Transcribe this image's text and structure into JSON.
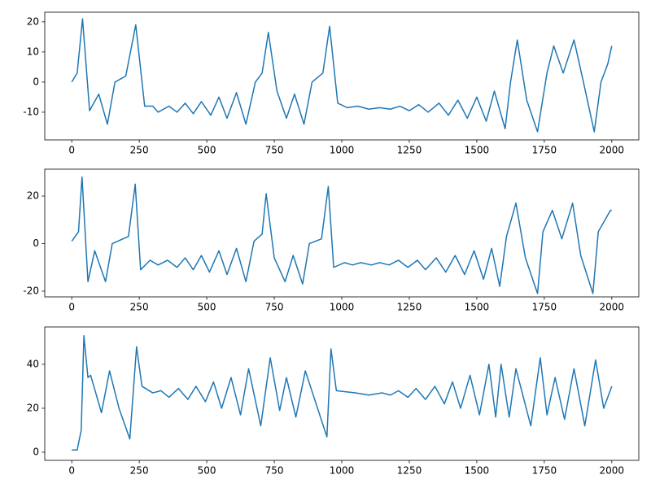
{
  "chart_data": [
    {
      "type": "line",
      "color": "#1f77b4",
      "xlim": [
        -100,
        2100
      ],
      "ylim": [
        -19.2,
        23.2
      ],
      "xticks": [
        0,
        250,
        500,
        750,
        1000,
        1250,
        1500,
        1750,
        2000
      ],
      "yticks": [
        -10,
        0,
        10,
        20
      ],
      "x": [
        0,
        20,
        40,
        66,
        100,
        132,
        160,
        200,
        237,
        270,
        300,
        320,
        360,
        390,
        420,
        450,
        480,
        515,
        545,
        575,
        610,
        645,
        680,
        705,
        728,
        760,
        795,
        825,
        860,
        890,
        930,
        955,
        985,
        1020,
        1060,
        1100,
        1140,
        1180,
        1215,
        1250,
        1285,
        1320,
        1360,
        1395,
        1430,
        1465,
        1500,
        1535,
        1565,
        1605,
        1625,
        1650,
        1685,
        1725,
        1760,
        1785,
        1820,
        1860,
        1895,
        1935,
        1960,
        1985,
        2000
      ],
      "values": [
        0,
        3,
        21,
        -9.5,
        -4,
        -14,
        0,
        2,
        19,
        -8,
        -8,
        -10,
        -8,
        -10,
        -7,
        -10.5,
        -6.5,
        -11,
        -5,
        -12,
        -3.5,
        -14,
        0,
        3,
        16.5,
        -3,
        -12,
        -4,
        -14,
        0,
        3,
        18.5,
        -7,
        -8.5,
        -8,
        -9,
        -8.5,
        -9,
        -8,
        -9.5,
        -7.5,
        -10,
        -7,
        -11,
        -6,
        -12,
        -5,
        -13,
        -3,
        -15.5,
        0,
        14,
        -6,
        -16.5,
        3,
        12,
        3,
        14,
        0,
        -16.5,
        0,
        6,
        12
      ]
    },
    {
      "type": "line",
      "color": "#1f77b4",
      "xlim": [
        -100,
        2100
      ],
      "ylim": [
        -22.4,
        31.3
      ],
      "xticks": [
        0,
        250,
        500,
        750,
        1000,
        1250,
        1500,
        1750,
        2000
      ],
      "yticks": [
        -20,
        0,
        20
      ],
      "x": [
        0,
        25,
        38,
        60,
        85,
        125,
        150,
        210,
        235,
        255,
        290,
        320,
        355,
        390,
        420,
        450,
        480,
        510,
        545,
        575,
        610,
        645,
        675,
        705,
        720,
        750,
        790,
        820,
        855,
        880,
        925,
        950,
        970,
        1010,
        1040,
        1070,
        1110,
        1140,
        1175,
        1210,
        1245,
        1280,
        1310,
        1350,
        1385,
        1420,
        1455,
        1490,
        1525,
        1555,
        1585,
        1610,
        1645,
        1680,
        1725,
        1745,
        1780,
        1815,
        1855,
        1885,
        1930,
        1950,
        1995,
        2000
      ],
      "values": [
        1,
        5,
        28,
        -16,
        -3,
        -16,
        0,
        3,
        25,
        -11,
        -7,
        -9,
        -7,
        -10,
        -6,
        -11,
        -5,
        -12,
        -3,
        -13,
        -2,
        -16,
        1,
        4,
        21,
        -6,
        -16,
        -5,
        -17,
        0,
        2,
        24,
        -10,
        -8,
        -9,
        -8,
        -9,
        -8,
        -9,
        -7,
        -10,
        -7,
        -11,
        -6,
        -12,
        -5,
        -13,
        -3,
        -15,
        -2,
        -18,
        3,
        17,
        -6,
        -21,
        5,
        14,
        2,
        17,
        -5,
        -21,
        5,
        14,
        14
      ]
    },
    {
      "type": "line",
      "color": "#1f77b4",
      "xlim": [
        -100,
        2100
      ],
      "ylim": [
        -3.7,
        57
      ],
      "xticks": [
        0,
        250,
        500,
        750,
        1000,
        1250,
        1500,
        1750,
        2000
      ],
      "yticks": [
        0,
        20,
        40
      ],
      "x": [
        0,
        20,
        35,
        45,
        60,
        70,
        110,
        140,
        175,
        215,
        240,
        260,
        300,
        330,
        360,
        395,
        430,
        460,
        495,
        525,
        555,
        590,
        625,
        655,
        700,
        735,
        770,
        795,
        830,
        865,
        945,
        960,
        980,
        1050,
        1100,
        1150,
        1180,
        1210,
        1245,
        1275,
        1310,
        1345,
        1380,
        1410,
        1440,
        1475,
        1510,
        1545,
        1570,
        1590,
        1620,
        1645,
        1700,
        1735,
        1760,
        1790,
        1825,
        1860,
        1900,
        1940,
        1970,
        2000
      ],
      "values": [
        1,
        1,
        10,
        53,
        34,
        35,
        18,
        37,
        20,
        6,
        48,
        30,
        27,
        28,
        25,
        29,
        24,
        30,
        23,
        32,
        20,
        34,
        17,
        38,
        12,
        43,
        19,
        34,
        16,
        37,
        7,
        47,
        28,
        27,
        26,
        27,
        26,
        28,
        25,
        29,
        24,
        30,
        22,
        32,
        20,
        35,
        17,
        40,
        16,
        40,
        16,
        38,
        12,
        43,
        17,
        34,
        15,
        38,
        12,
        42,
        20,
        30
      ]
    }
  ]
}
